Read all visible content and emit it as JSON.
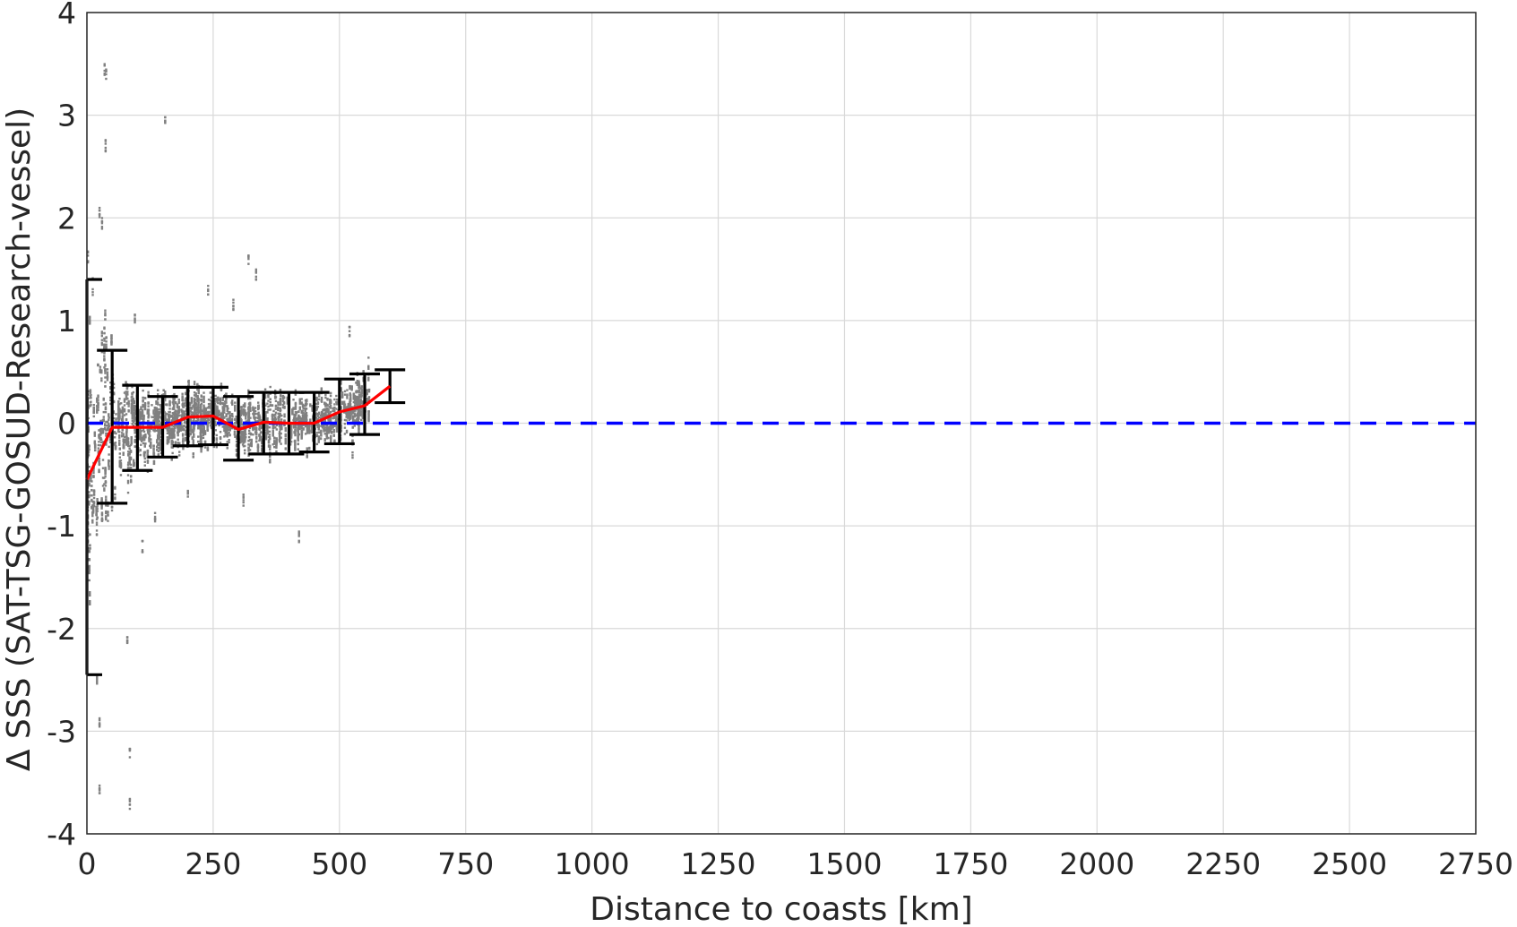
{
  "chart_data": {
    "type": "scatter",
    "title": "",
    "xlabel": "Distance to coasts [km]",
    "ylabel": "Δ SSS (SAT-TSG-GOSUD-Research-vessel)",
    "xlim": [
      0,
      2750
    ],
    "ylim": [
      -4,
      4
    ],
    "xticks": [
      0,
      250,
      500,
      750,
      1000,
      1250,
      1500,
      1750,
      2000,
      2250,
      2500,
      2750
    ],
    "yticks": [
      -4,
      -3,
      -2,
      -1,
      0,
      1,
      2,
      3,
      4
    ],
    "grid": true,
    "legend": "none",
    "colors": {
      "scatter": "#808080",
      "mean_line": "#ff0000",
      "zero_line": "#0000ff",
      "error_bars": "#000000"
    },
    "scatter_series": {
      "x_range": [
        0,
        560
      ],
      "y_spread_note_free": true,
      "outliers": [
        {
          "x": 35,
          "y": 3.45
        },
        {
          "x": 38,
          "y": 3.4
        },
        {
          "x": 37,
          "y": 2.7
        },
        {
          "x": 155,
          "y": 2.92
        },
        {
          "x": 25,
          "y": 2.05
        },
        {
          "x": 30,
          "y": 1.95
        },
        {
          "x": 2,
          "y": 1.62
        },
        {
          "x": 320,
          "y": 1.6
        },
        {
          "x": 335,
          "y": 1.45
        },
        {
          "x": 240,
          "y": 1.3
        },
        {
          "x": 290,
          "y": 1.15
        },
        {
          "x": 95,
          "y": 1.0
        },
        {
          "x": 520,
          "y": 0.9
        },
        {
          "x": 25,
          "y": -2.9
        },
        {
          "x": 20,
          "y": -2.5
        },
        {
          "x": 80,
          "y": -2.1
        },
        {
          "x": 85,
          "y": -3.2
        },
        {
          "x": 85,
          "y": -3.7
        },
        {
          "x": 25,
          "y": -3.55
        },
        {
          "x": 110,
          "y": -1.2
        },
        {
          "x": 420,
          "y": -1.1
        },
        {
          "x": 135,
          "y": -0.9
        },
        {
          "x": 200,
          "y": -0.7
        },
        {
          "x": 310,
          "y": -0.75
        }
      ]
    },
    "binned_stats": [
      {
        "x": 0,
        "mean": -0.55,
        "lower": -2.45,
        "upper": 1.4
      },
      {
        "x": 50,
        "mean": -0.04,
        "lower": -0.78,
        "upper": 0.71
      },
      {
        "x": 100,
        "mean": -0.04,
        "lower": -0.46,
        "upper": 0.37
      },
      {
        "x": 150,
        "mean": -0.04,
        "lower": -0.33,
        "upper": 0.26
      },
      {
        "x": 200,
        "mean": 0.06,
        "lower": -0.22,
        "upper": 0.35
      },
      {
        "x": 250,
        "mean": 0.07,
        "lower": -0.21,
        "upper": 0.35
      },
      {
        "x": 300,
        "mean": -0.06,
        "lower": -0.36,
        "upper": 0.26
      },
      {
        "x": 350,
        "mean": 0.01,
        "lower": -0.3,
        "upper": 0.3
      },
      {
        "x": 400,
        "mean": 0.0,
        "lower": -0.3,
        "upper": 0.3
      },
      {
        "x": 450,
        "mean": 0.0,
        "lower": -0.28,
        "upper": 0.3
      },
      {
        "x": 500,
        "mean": 0.11,
        "lower": -0.2,
        "upper": 0.43
      },
      {
        "x": 550,
        "mean": 0.17,
        "lower": -0.11,
        "upper": 0.48
      },
      {
        "x": 600,
        "mean": 0.36,
        "lower": 0.2,
        "upper": 0.52
      }
    ],
    "reference_line": {
      "y": 0,
      "style": "dashed"
    }
  }
}
